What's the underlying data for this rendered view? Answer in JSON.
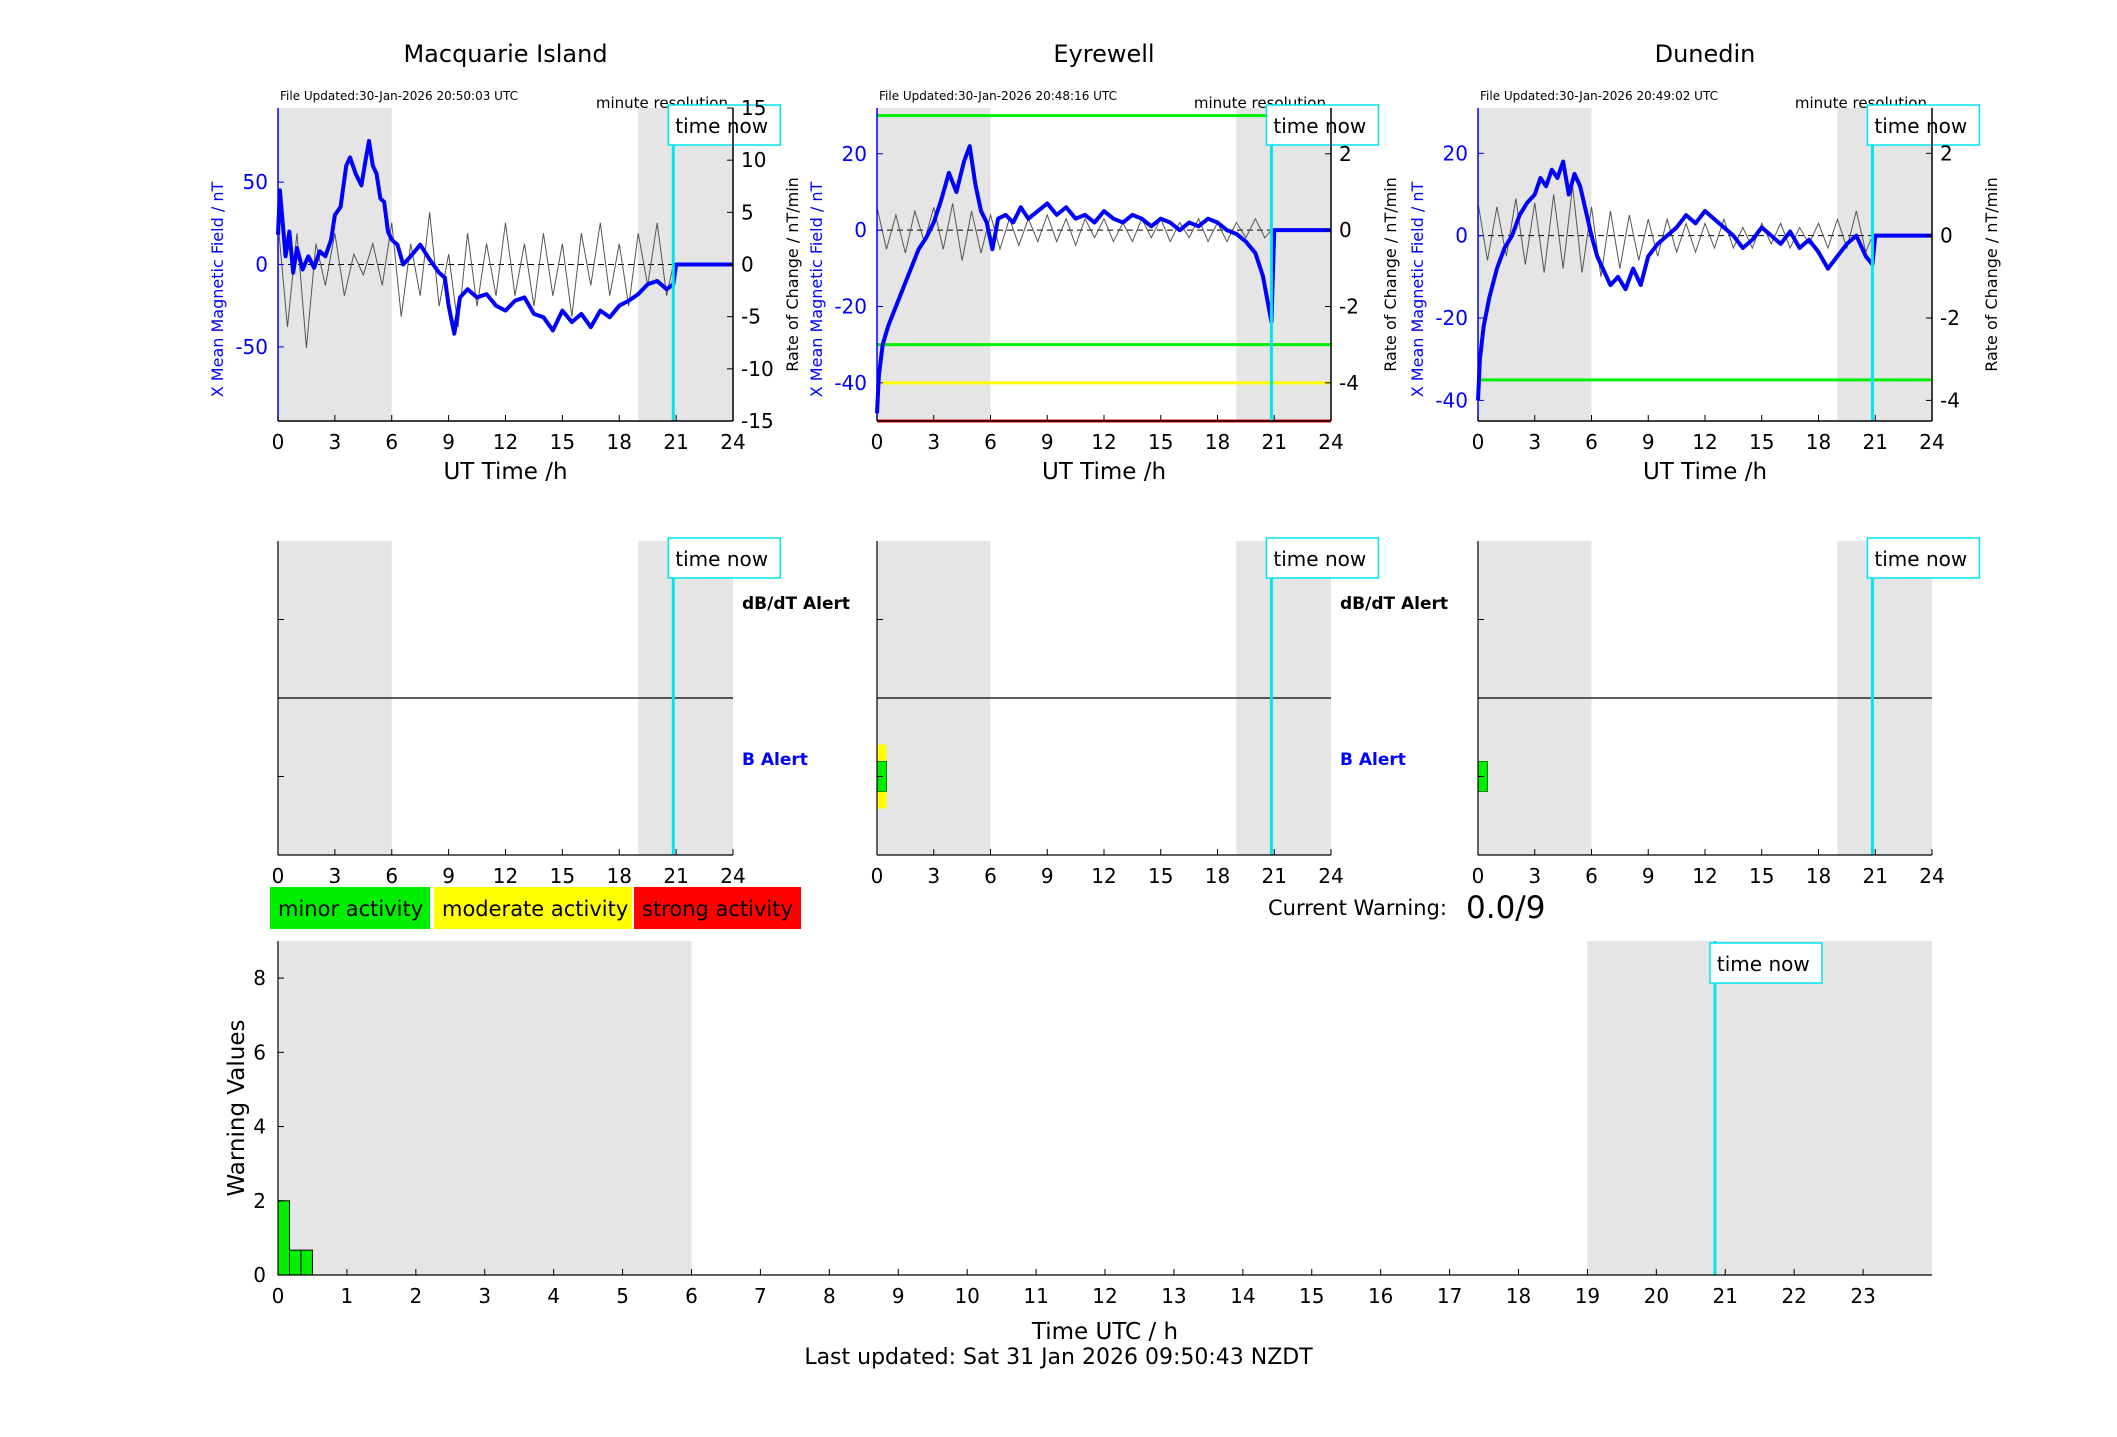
{
  "colors": {
    "shade": "#e5e5e5",
    "field": "#0000ff",
    "rate": "#555555",
    "time_now": "#00e5ee",
    "minor": "#00ee00",
    "moderate": "#ffff00",
    "strong": "#ff0000"
  },
  "labels": {
    "field_ylabel": "X Mean Magnetic Field / nT",
    "rate_ylabel": "Rate of Change / nT/min",
    "xlabel": "UT Time /h",
    "time_now": "time now",
    "minute_resolution": "minute resolution",
    "dbdt_alert": "dB/dT Alert",
    "b_alert": "B Alert"
  },
  "legend": [
    {
      "label": "minor activity",
      "color": "#00ee00"
    },
    {
      "label": "moderate activity",
      "color": "#ffff00"
    },
    {
      "label": "strong activity",
      "color": "#ff0000"
    }
  ],
  "current_warning": {
    "label": "Current Warning:",
    "value": "0.0/9"
  },
  "footer": "Last updated: Sat 31 Jan 2026 09:50:43 NZDT",
  "chart_data": [
    {
      "type": "line",
      "title": "Macquarie Island",
      "file_updated": "File Updated:30-Jan-2026 20:50:03 UTC",
      "xlabel": "UT Time /h",
      "ylabel": "X Mean Magnetic Field / nT",
      "ylabel_right": "Rate of Change / nT/min",
      "xlim": [
        0,
        24
      ],
      "xticks": [
        0,
        3,
        6,
        9,
        12,
        15,
        18,
        21,
        24
      ],
      "ylim": [
        -95,
        95
      ],
      "yticks": [
        -50,
        0,
        50
      ],
      "ylim_right": [
        -15,
        15
      ],
      "yticks_right": [
        -15,
        -10,
        -5,
        0,
        5,
        10,
        15
      ],
      "night_shading": [
        [
          0,
          6
        ],
        [
          19,
          24
        ]
      ],
      "time_now": 20.85,
      "threshold_lines": [],
      "series": [
        {
          "name": "X Mean Magnetic Field / nT",
          "axis": "left",
          "x": [
            0,
            0.1,
            0.25,
            0.4,
            0.6,
            0.8,
            1.0,
            1.3,
            1.6,
            1.9,
            2.2,
            2.5,
            2.8,
            3.0,
            3.3,
            3.6,
            3.8,
            4.1,
            4.4,
            4.6,
            4.8,
            5.0,
            5.2,
            5.4,
            5.6,
            5.8,
            6.0,
            6.3,
            6.6,
            7.0,
            7.5,
            8.0,
            8.5,
            8.8,
            9.0,
            9.3,
            9.6,
            10.0,
            10.5,
            11.0,
            11.5,
            12.0,
            12.5,
            13.0,
            13.5,
            14.0,
            14.5,
            15.0,
            15.5,
            16.0,
            16.5,
            17.0,
            17.5,
            18.0,
            18.5,
            19.0,
            19.5,
            20.0,
            20.5,
            20.85,
            21.0,
            24
          ],
          "values": [
            18,
            45,
            25,
            5,
            20,
            -5,
            10,
            -3,
            5,
            -2,
            8,
            5,
            15,
            30,
            35,
            60,
            65,
            55,
            48,
            62,
            75,
            60,
            55,
            40,
            38,
            20,
            15,
            12,
            0,
            5,
            12,
            3,
            -5,
            -8,
            -25,
            -42,
            -20,
            -15,
            -20,
            -18,
            -25,
            -28,
            -22,
            -20,
            -30,
            -32,
            -40,
            -28,
            -35,
            -30,
            -38,
            -28,
            -32,
            -25,
            -22,
            -18,
            -12,
            -10,
            -15,
            -12,
            0,
            0
          ]
        },
        {
          "name": "Rate of Change / nT/min",
          "axis": "right",
          "x": [
            0,
            0.5,
            1,
            1.5,
            2,
            2.5,
            3,
            3.5,
            4,
            4.5,
            5,
            5.5,
            6,
            6.5,
            7,
            7.5,
            8,
            8.5,
            9,
            9.5,
            10,
            10.5,
            11,
            11.5,
            12,
            12.5,
            13,
            13.5,
            14,
            14.5,
            15,
            15.5,
            16,
            16.5,
            17,
            17.5,
            18,
            18.5,
            19,
            19.5,
            20,
            20.5,
            20.85
          ],
          "values": [
            4,
            -6,
            3,
            -8,
            2,
            -2,
            3,
            -3,
            1,
            -1,
            2,
            -2,
            4,
            -5,
            2,
            -3,
            5,
            -4,
            1,
            -6,
            3,
            -4,
            2,
            -3,
            4,
            -3,
            2,
            -4,
            3,
            -3,
            2,
            -5,
            3,
            -2,
            4,
            -3,
            2,
            -4,
            3,
            -2,
            4,
            -3,
            0
          ]
        }
      ],
      "alerts": {
        "dbdt": [],
        "b": []
      }
    },
    {
      "type": "line",
      "title": "Eyrewell",
      "file_updated": "File Updated:30-Jan-2026 20:48:16 UTC",
      "xlabel": "UT Time /h",
      "ylabel": "X Mean Magnetic Field / nT",
      "ylabel_right": "Rate of Change / nT/min",
      "xlim": [
        0,
        24
      ],
      "xticks": [
        0,
        3,
        6,
        9,
        12,
        15,
        18,
        21,
        24
      ],
      "ylim": [
        -50,
        32
      ],
      "yticks": [
        -40,
        -20,
        0,
        20
      ],
      "ylim_right": [
        -5,
        3.2
      ],
      "yticks_right": [
        -4,
        -2,
        0,
        2
      ],
      "night_shading": [
        [
          0,
          6
        ],
        [
          19,
          24
        ]
      ],
      "time_now": 20.85,
      "threshold_lines": [
        {
          "value": 30,
          "color": "#00ee00"
        },
        {
          "value": -30,
          "color": "#00ee00"
        },
        {
          "value": -40,
          "color": "#ffff00"
        },
        {
          "value": -50,
          "color": "#ff0000"
        }
      ],
      "series": [
        {
          "name": "X Mean Magnetic Field / nT",
          "axis": "left",
          "x": [
            0,
            0.1,
            0.3,
            0.6,
            1.0,
            1.4,
            1.8,
            2.2,
            2.6,
            3.0,
            3.4,
            3.8,
            4.2,
            4.6,
            4.9,
            5.2,
            5.5,
            5.8,
            6.1,
            6.4,
            6.8,
            7.2,
            7.6,
            8.0,
            8.5,
            9.0,
            9.5,
            10.0,
            10.5,
            11.0,
            11.5,
            12.0,
            12.5,
            13.0,
            13.5,
            14.0,
            14.5,
            15.0,
            15.5,
            16.0,
            16.5,
            17.0,
            17.5,
            18.0,
            18.5,
            19.0,
            19.5,
            20.0,
            20.4,
            20.7,
            20.85,
            21.0,
            24
          ],
          "values": [
            -48,
            -38,
            -30,
            -25,
            -20,
            -15,
            -10,
            -5,
            -2,
            2,
            8,
            15,
            10,
            18,
            22,
            12,
            5,
            2,
            -5,
            3,
            4,
            2,
            6,
            3,
            5,
            7,
            4,
            6,
            3,
            4,
            2,
            5,
            3,
            2,
            4,
            3,
            1,
            3,
            2,
            0,
            2,
            1,
            3,
            2,
            0,
            -1,
            -3,
            -6,
            -12,
            -20,
            -24,
            0,
            0
          ]
        },
        {
          "name": "Rate of Change / nT/min",
          "axis": "right",
          "x": [
            0,
            0.5,
            1,
            1.5,
            2,
            2.5,
            3,
            3.5,
            4,
            4.5,
            5,
            5.5,
            6,
            6.5,
            7,
            7.5,
            8,
            8.5,
            9,
            9.5,
            10,
            10.5,
            11,
            11.5,
            12,
            12.5,
            13,
            13.5,
            14,
            14.5,
            15,
            15.5,
            16,
            16.5,
            17,
            17.5,
            18,
            18.5,
            19,
            19.5,
            20,
            20.5,
            20.85
          ],
          "values": [
            0.6,
            -0.5,
            0.4,
            -0.6,
            0.5,
            -0.3,
            0.6,
            -0.5,
            0.7,
            -0.8,
            0.5,
            -0.6,
            0.4,
            -0.5,
            0.3,
            -0.4,
            0.3,
            -0.3,
            0.4,
            -0.3,
            0.3,
            -0.4,
            0.3,
            -0.2,
            0.3,
            -0.3,
            0.2,
            -0.3,
            0.3,
            -0.2,
            0.3,
            -0.3,
            0.2,
            -0.2,
            0.3,
            -0.3,
            0.2,
            -0.3,
            0.2,
            -0.2,
            0.3,
            -0.2,
            0
          ]
        }
      ],
      "alerts": {
        "dbdt": [],
        "b": [
          {
            "start": 0,
            "end": 0.5,
            "level": 1
          }
        ]
      }
    },
    {
      "type": "line",
      "title": "Dunedin",
      "file_updated": "File Updated:30-Jan-2026 20:49:02 UTC",
      "xlabel": "UT Time /h",
      "ylabel": "X Mean Magnetic Field / nT",
      "ylabel_right": "Rate of Change / nT/min",
      "xlim": [
        0,
        24
      ],
      "xticks": [
        0,
        3,
        6,
        9,
        12,
        15,
        18,
        21,
        24
      ],
      "ylim": [
        -45,
        31
      ],
      "yticks": [
        -40,
        -20,
        0,
        20
      ],
      "ylim_right": [
        -4.5,
        3.1
      ],
      "yticks_right": [
        -4,
        -2,
        0,
        2
      ],
      "night_shading": [
        [
          0,
          6
        ],
        [
          19,
          24
        ]
      ],
      "time_now": 20.85,
      "threshold_lines": [
        {
          "value": -35,
          "color": "#00ee00"
        }
      ],
      "series": [
        {
          "name": "X Mean Magnetic Field / nT",
          "axis": "left",
          "x": [
            0,
            0.1,
            0.3,
            0.6,
            1.0,
            1.4,
            1.8,
            2.2,
            2.6,
            3.0,
            3.3,
            3.6,
            3.9,
            4.2,
            4.5,
            4.8,
            5.1,
            5.4,
            5.7,
            6.0,
            6.3,
            6.6,
            7.0,
            7.4,
            7.8,
            8.2,
            8.6,
            9.0,
            9.5,
            10.0,
            10.5,
            11.0,
            11.5,
            12.0,
            12.5,
            13.0,
            13.5,
            14.0,
            14.5,
            15.0,
            15.5,
            16.0,
            16.5,
            17.0,
            17.5,
            18.0,
            18.5,
            19.0,
            19.5,
            20.0,
            20.5,
            20.85,
            21.0,
            24
          ],
          "values": [
            -40,
            -30,
            -22,
            -15,
            -8,
            -3,
            0,
            5,
            8,
            10,
            14,
            12,
            16,
            14,
            18,
            10,
            15,
            12,
            6,
            0,
            -5,
            -8,
            -12,
            -10,
            -13,
            -8,
            -12,
            -5,
            -2,
            0,
            2,
            5,
            3,
            6,
            4,
            2,
            0,
            -3,
            -1,
            2,
            0,
            -2,
            1,
            -3,
            -1,
            -4,
            -8,
            -5,
            -2,
            0,
            -5,
            -7,
            0,
            0
          ]
        },
        {
          "name": "Rate of Change / nT/min",
          "axis": "right",
          "x": [
            0,
            0.5,
            1,
            1.5,
            2,
            2.5,
            3,
            3.5,
            4,
            4.5,
            5,
            5.5,
            6,
            6.5,
            7,
            7.5,
            8,
            8.5,
            9,
            9.5,
            10,
            10.5,
            11,
            11.5,
            12,
            12.5,
            13,
            13.5,
            14,
            14.5,
            15,
            15.5,
            16,
            16.5,
            17,
            17.5,
            18,
            18.5,
            19,
            19.5,
            20,
            20.5,
            20.85
          ],
          "values": [
            0.8,
            -0.6,
            0.7,
            -0.5,
            0.9,
            -0.7,
            0.8,
            -0.9,
            1.0,
            -0.8,
            1.2,
            -0.9,
            0.7,
            -1.0,
            0.6,
            -0.8,
            0.5,
            -0.6,
            0.4,
            -0.5,
            0.4,
            -0.4,
            0.3,
            -0.4,
            0.3,
            -0.3,
            0.4,
            -0.3,
            0.2,
            -0.3,
            0.3,
            -0.2,
            0.3,
            -0.3,
            0.2,
            -0.2,
            0.3,
            -0.3,
            0.4,
            -0.3,
            0.6,
            -0.4,
            0
          ]
        }
      ],
      "alerts": {
        "dbdt": [],
        "b": [
          {
            "start": 0,
            "end": 0.5,
            "level": 1
          }
        ]
      }
    },
    {
      "type": "bar",
      "title": "",
      "xlabel": "Time UTC / h",
      "ylabel": "Warning Values",
      "xlim": [
        0,
        24
      ],
      "xticks": [
        0,
        1,
        2,
        3,
        4,
        5,
        6,
        7,
        8,
        9,
        10,
        11,
        12,
        13,
        14,
        15,
        16,
        17,
        18,
        19,
        20,
        21,
        22,
        23
      ],
      "ylim": [
        0,
        9
      ],
      "yticks": [
        0,
        2,
        4,
        6,
        8
      ],
      "night_shading": [
        [
          0,
          6
        ],
        [
          19,
          24
        ]
      ],
      "time_now": 20.85,
      "bars": [
        {
          "start": 0.0,
          "end": 0.167,
          "value": 2
        },
        {
          "start": 0.167,
          "end": 0.333,
          "value": 0.67
        },
        {
          "start": 0.333,
          "end": 0.5,
          "value": 0.67
        }
      ]
    }
  ]
}
